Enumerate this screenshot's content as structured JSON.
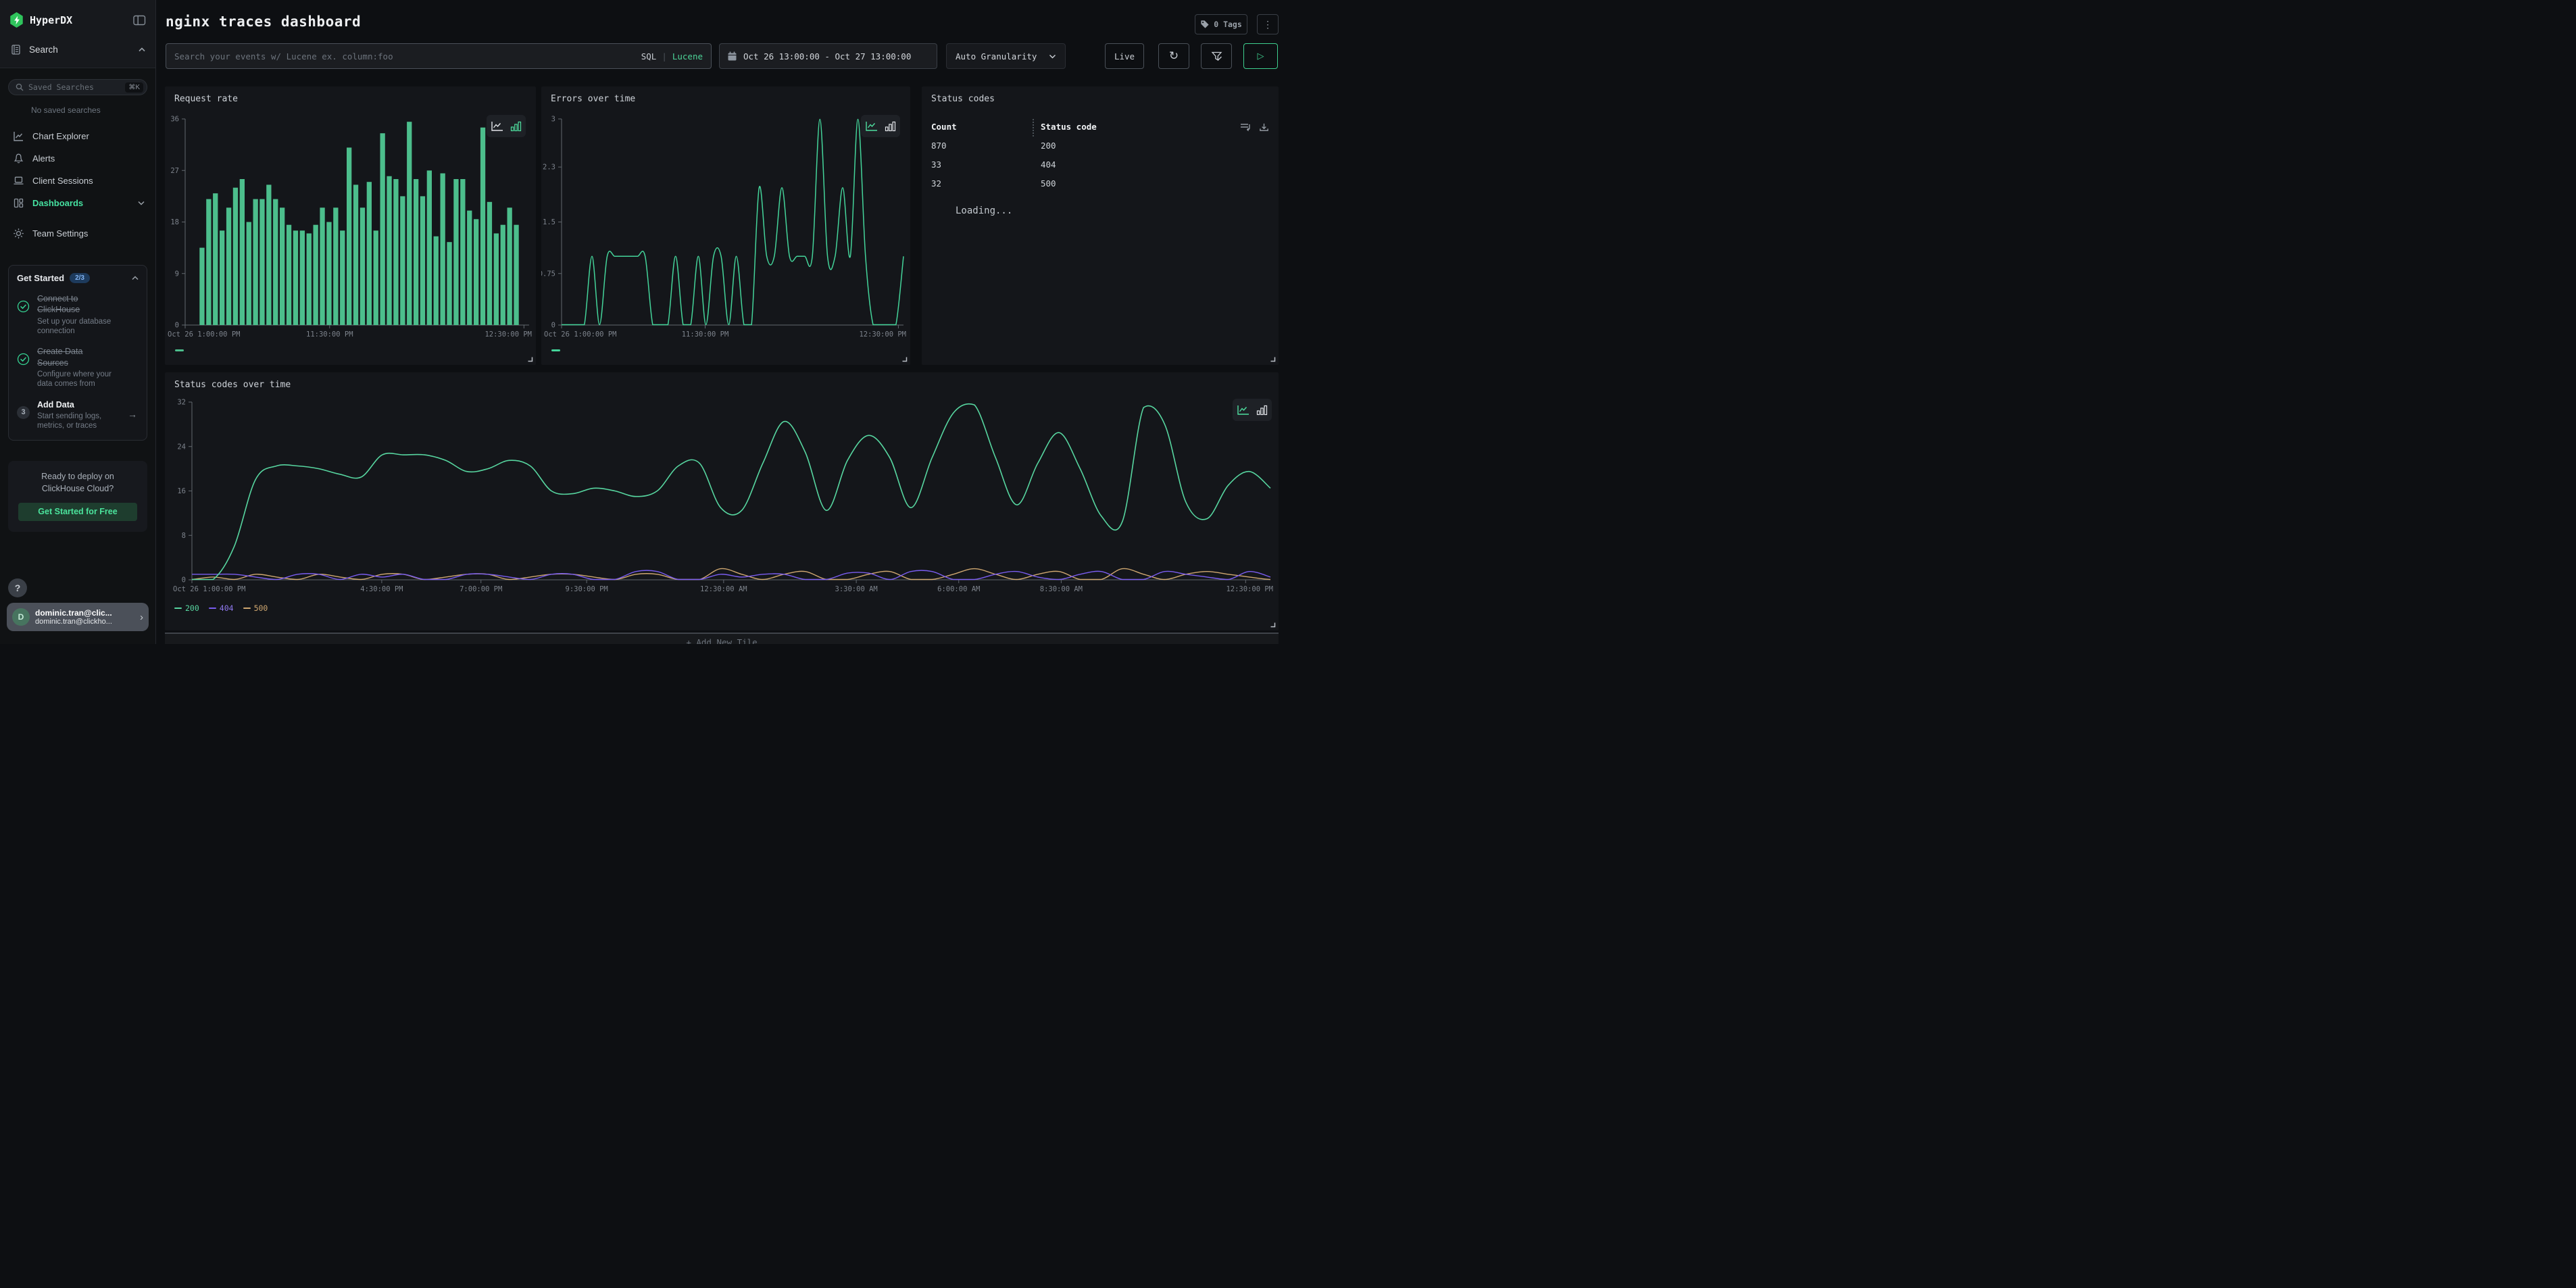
{
  "colors": {
    "accent_green": "#45e0a0",
    "bar_green": "#4cbe8c",
    "line_green": "#44d49a",
    "purple_404": "#7a5df0",
    "tan_500": "#cfa770",
    "badge_blue_bg": "#1d3a5c",
    "badge_blue_text": "#82b4f2",
    "cta_bg": "#1e3d2e",
    "cta_text": "#4be39c",
    "axis": "#62686f",
    "axis_label": "#7d838c"
  },
  "sidebar": {
    "brand": "HyperDX",
    "search_header": "Search",
    "saved_search": {
      "placeholder": "Saved Searches",
      "shortcut": "⌘K"
    },
    "no_saved": "No saved searches",
    "nav": [
      {
        "label": "Chart Explorer",
        "icon": "chart-line-icon"
      },
      {
        "label": "Alerts",
        "icon": "bell-icon"
      },
      {
        "label": "Client Sessions",
        "icon": "laptop-icon"
      },
      {
        "label": "Dashboards",
        "icon": "dashboard-icon",
        "active": true
      },
      {
        "label": "Team Settings",
        "icon": "gear-icon"
      }
    ],
    "get_started": {
      "title": "Get Started",
      "badge": "2/3",
      "steps": [
        {
          "title": "Connect to ClickHouse",
          "desc": "Set up your database connection",
          "done": true
        },
        {
          "title": "Create Data Sources",
          "desc": "Configure where your data comes from",
          "done": true
        },
        {
          "title": "Add Data",
          "desc": "Start sending logs, metrics, or traces",
          "number": "3",
          "done": false,
          "arrow": "→"
        }
      ]
    },
    "cloud": {
      "line1": "Ready to deploy on",
      "line2": "ClickHouse Cloud?",
      "cta": "Get Started for Free"
    },
    "help": "?",
    "user": {
      "initial": "D",
      "name": "dominic.tran@clic...",
      "email": "dominic.tran@clickho...",
      "chevron": "›"
    }
  },
  "header": {
    "title": "nginx traces dashboard",
    "tags": "0 Tags",
    "menu": "⋮"
  },
  "filters": {
    "search_placeholder": "Search your events w/ Lucene ex. column:foo",
    "sql": "SQL",
    "sep": "|",
    "lucene": "Lucene",
    "date_range": "Oct 26 13:00:00 - Oct 27 13:00:00",
    "granularity": "Auto Granularity",
    "live": "Live",
    "refresh": "↻",
    "play": "▷"
  },
  "footer": {
    "add_tile": "+ Add New Tile"
  },
  "chart_data": [
    {
      "type": "bar",
      "title": "Request rate",
      "ylim": [
        0,
        36
      ],
      "yticks": [
        0,
        9,
        18,
        27,
        36
      ],
      "xticks": [
        {
          "pos": 0.0,
          "label": "Oct 26 1:00:00 PM"
        },
        {
          "pos": 0.42,
          "label": "11:30:00 PM"
        },
        {
          "pos": 0.985,
          "label": "12:30:00 PM"
        }
      ],
      "color": "#4cbe8c",
      "legend_position": "bottom-left",
      "grid": false,
      "values": [
        13.5,
        22,
        23,
        16.5,
        20.5,
        24,
        25.5,
        18,
        22,
        22,
        24.5,
        22,
        20.5,
        17.5,
        16.5,
        16.5,
        16,
        17.5,
        20.5,
        18,
        20.5,
        16.5,
        31,
        24.5,
        20.5,
        25,
        16.5,
        33.5,
        26,
        25.5,
        22.5,
        35.5,
        25.5,
        22.5,
        27,
        15.5,
        26.5,
        14.5,
        25.5,
        25.5,
        20,
        18.5,
        34.5,
        21.5,
        16,
        17.5,
        20.5,
        17.5
      ]
    },
    {
      "type": "line",
      "title": "Errors over time",
      "ylim": [
        0,
        3
      ],
      "yticks": [
        0,
        0.75,
        1.5,
        2.3,
        3
      ],
      "xticks": [
        {
          "pos": 0.0,
          "label": "Oct 26 1:00:00 PM"
        },
        {
          "pos": 0.42,
          "label": "11:30:00 PM"
        },
        {
          "pos": 0.985,
          "label": "12:30:00 PM"
        }
      ],
      "color": "#44d49a",
      "legend_position": "bottom-left",
      "grid": false,
      "values": [
        0,
        0,
        0,
        0,
        1,
        0,
        1,
        1,
        1,
        1,
        1,
        1,
        0,
        0,
        0,
        1,
        0,
        0,
        1,
        0,
        1,
        1,
        0,
        1,
        0,
        0,
        2,
        1,
        1,
        2,
        1,
        1,
        1,
        1,
        3,
        1,
        1,
        2,
        1,
        3,
        1,
        0,
        0,
        0,
        0,
        1
      ]
    },
    {
      "type": "table",
      "title": "Status codes",
      "columns": [
        "Count",
        "Status code"
      ],
      "rows": [
        [
          "870",
          "200"
        ],
        [
          "33",
          "404"
        ],
        [
          "32",
          "500"
        ]
      ],
      "status": "Loading..."
    },
    {
      "type": "line",
      "title": "Status codes over time",
      "ylim": [
        0,
        32
      ],
      "yticks": [
        0,
        8,
        16,
        24,
        32
      ],
      "xticks": [
        {
          "pos": 0.0,
          "label": "Oct 26 1:00:00 PM"
        },
        {
          "pos": 0.176,
          "label": "4:30:00 PM"
        },
        {
          "pos": 0.268,
          "label": "7:00:00 PM"
        },
        {
          "pos": 0.366,
          "label": "9:30:00 PM"
        },
        {
          "pos": 0.493,
          "label": "12:30:00 AM"
        },
        {
          "pos": 0.616,
          "label": "3:30:00 AM"
        },
        {
          "pos": 0.711,
          "label": "6:00:00 AM"
        },
        {
          "pos": 0.806,
          "label": "8:30:00 AM"
        },
        {
          "pos": 0.977,
          "label": "12:30:00 PM"
        }
      ],
      "grid": false,
      "legend_position": "bottom-left",
      "series": [
        {
          "name": "200",
          "color": "#57d6a0",
          "values": [
            0,
            0,
            6,
            18,
            20.5,
            20.5,
            20,
            19,
            18.5,
            22.5,
            22.5,
            22.5,
            21.5,
            19.5,
            20,
            21.5,
            20.5,
            16,
            15.5,
            16.5,
            16,
            15,
            16,
            20.5,
            21,
            13,
            12.5,
            21,
            28.5,
            23,
            12.5,
            21.5,
            26,
            22,
            13,
            22,
            30,
            31.5,
            22,
            13.5,
            21,
            26.5,
            20,
            11.5,
            10.5,
            31,
            28,
            14,
            11,
            17,
            19.5,
            16.5
          ]
        },
        {
          "name": "404",
          "color": "#7a5df0",
          "values": [
            1,
            1,
            1,
            0.5,
            0,
            1,
            1,
            0,
            1,
            0.5,
            1,
            0,
            0,
            1,
            1,
            0.5,
            0,
            1,
            1,
            0,
            0,
            1.5,
            1.5,
            0,
            0,
            1,
            0.5,
            1,
            1,
            0,
            0,
            1.2,
            1.2,
            0,
            1.5,
            1.5,
            0,
            0,
            1,
            1.5,
            0.5,
            0,
            1,
            1.5,
            0,
            0,
            1.5,
            1,
            0.5,
            0,
            1.5,
            0.5
          ]
        },
        {
          "name": "500",
          "color": "#cfa770",
          "values": [
            0,
            0.5,
            0,
            1,
            0.5,
            0,
            1,
            0.5,
            0,
            1,
            1,
            0,
            0.5,
            1,
            1,
            0,
            0.5,
            1,
            1,
            0.5,
            0,
            1,
            1,
            0,
            0,
            2,
            1,
            0,
            1,
            1.5,
            0,
            0,
            1,
            1.5,
            0,
            0,
            1,
            2,
            1,
            0,
            1,
            1.5,
            0,
            0,
            2,
            1,
            0,
            1,
            1.5,
            1,
            0.5,
            0
          ]
        }
      ]
    }
  ]
}
